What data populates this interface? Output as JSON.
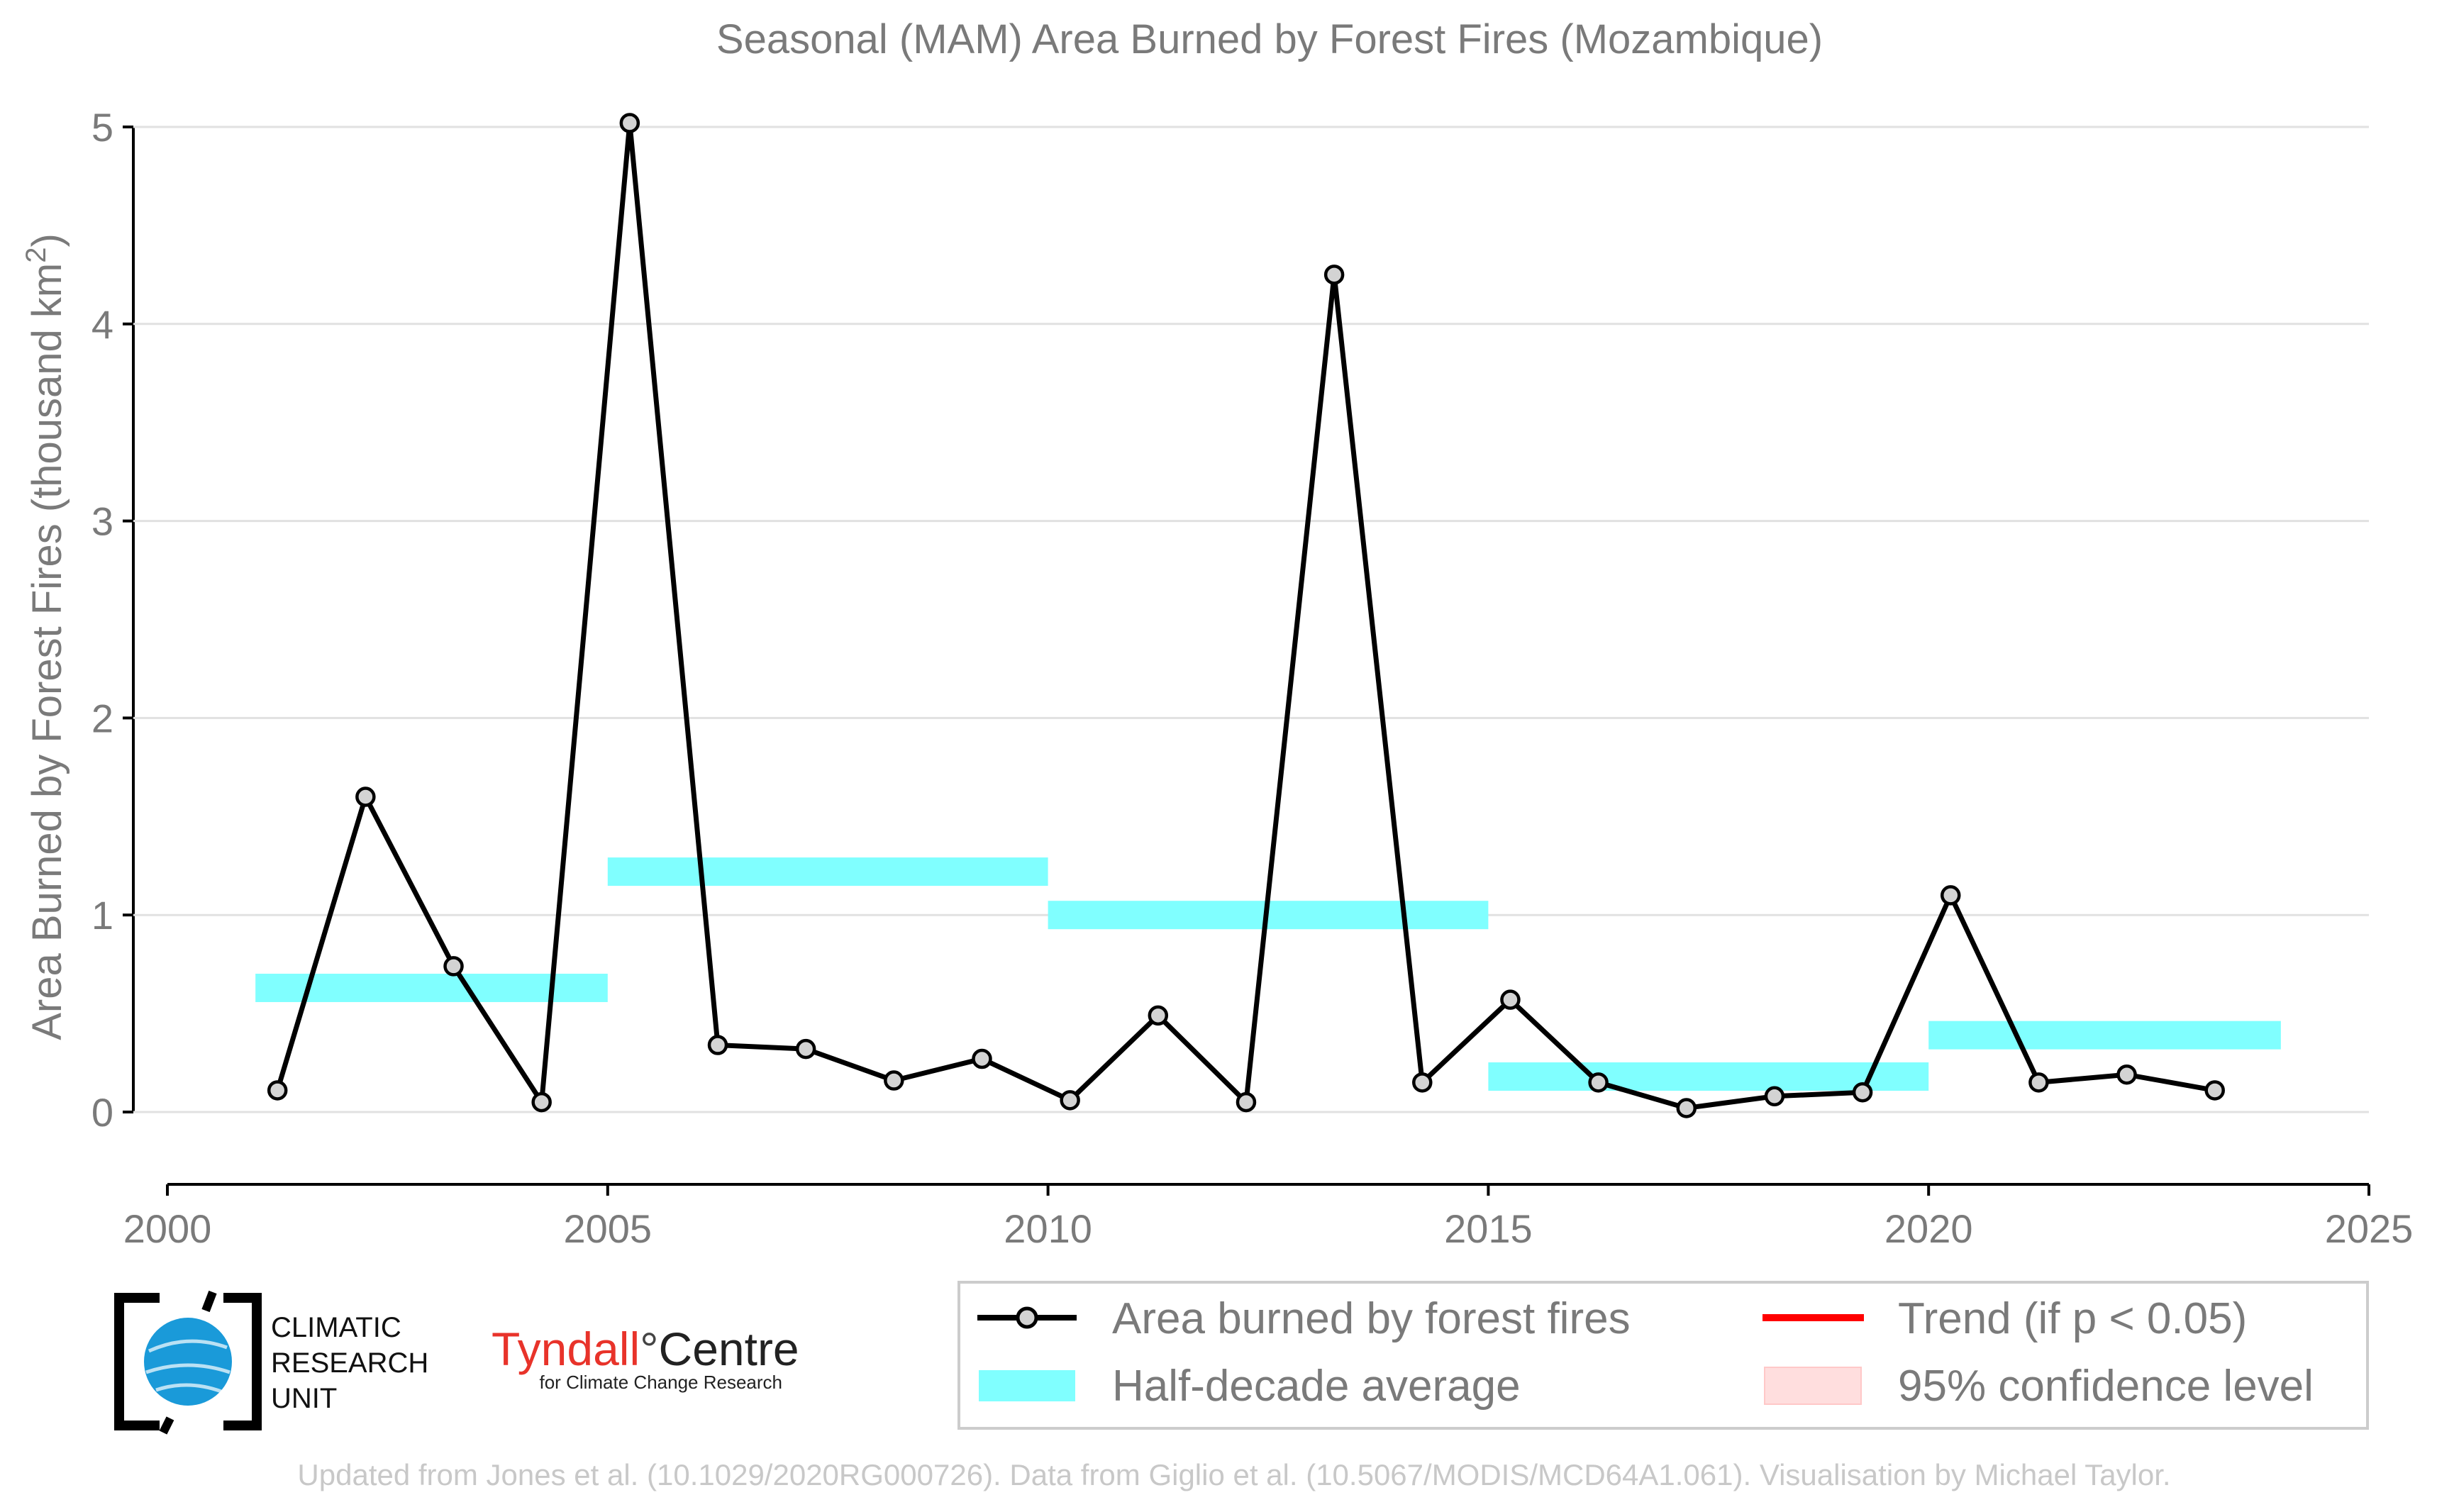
{
  "chart_data": {
    "type": "line",
    "title": "Seasonal (MAM) Area Burned by Forest Fires (Mozambique)",
    "ylabel": "Area Burned by Forest Fires (thousand km",
    "ylabel_sup": "2",
    "ylabel_tail": ")",
    "xlabel": "",
    "xlim": [
      2000,
      2025
    ],
    "ylim": [
      0,
      5
    ],
    "x_ticks": [
      "2000",
      "2005",
      "2010",
      "2015",
      "2020",
      "2025"
    ],
    "y_ticks": [
      "0",
      "1",
      "2",
      "3",
      "4",
      "5"
    ],
    "grid": "horizontal",
    "legend_position": "bottom-right",
    "series": [
      {
        "name": "Area burned by forest fires",
        "color": "#000000",
        "marker_fill": "#d3d3d3",
        "x": [
          2001,
          2002,
          2003,
          2004,
          2005,
          2006,
          2007,
          2008,
          2009,
          2010,
          2011,
          2012,
          2013,
          2014,
          2015,
          2016,
          2017,
          2018,
          2019,
          2020,
          2021,
          2022,
          2023
        ],
        "values": [
          0.11,
          1.6,
          0.74,
          0.05,
          5.02,
          0.34,
          0.32,
          0.16,
          0.27,
          0.06,
          0.49,
          0.05,
          4.25,
          0.15,
          0.57,
          0.15,
          0.02,
          0.08,
          0.1,
          1.1,
          0.15,
          0.19,
          0.11
        ]
      }
    ],
    "half_decade_averages": {
      "name": "Half-decade average",
      "color": "#80ffff",
      "segments": [
        {
          "x0": 2001,
          "x1": 2005,
          "value": 0.63
        },
        {
          "x0": 2005,
          "x1": 2010,
          "value": 1.22
        },
        {
          "x0": 2010,
          "x1": 2015,
          "value": 1.0
        },
        {
          "x0": 2015,
          "x1": 2020,
          "value": 0.18
        },
        {
          "x0": 2020,
          "x1": 2024,
          "value": 0.39
        }
      ]
    },
    "legend": [
      {
        "key": "line",
        "label": "Area burned by forest fires"
      },
      {
        "key": "trend",
        "label": "Trend (if p < 0.05)",
        "color": "#ff0000"
      },
      {
        "key": "avg",
        "label": "Half-decade average"
      },
      {
        "key": "ci",
        "label": "95% confidence level",
        "color": "#ffdede"
      }
    ]
  },
  "logos": {
    "cru_lines": [
      "CLIMATIC",
      "RESEARCH",
      "UNIT"
    ],
    "tyndall_main": "Tyndall",
    "tyndall_degree": "°",
    "tyndall_centre": "Centre",
    "tyndall_sub": "for Climate Change Research",
    "cru_color": "#1a9ad9",
    "tyndall_color": "#e8332a"
  },
  "footer": "Updated from Jones et al. (10.1029/2020RG000726). Data from Giglio et al. (10.5067/MODIS/MCD64A1.061). Visualisation by Michael Taylor."
}
